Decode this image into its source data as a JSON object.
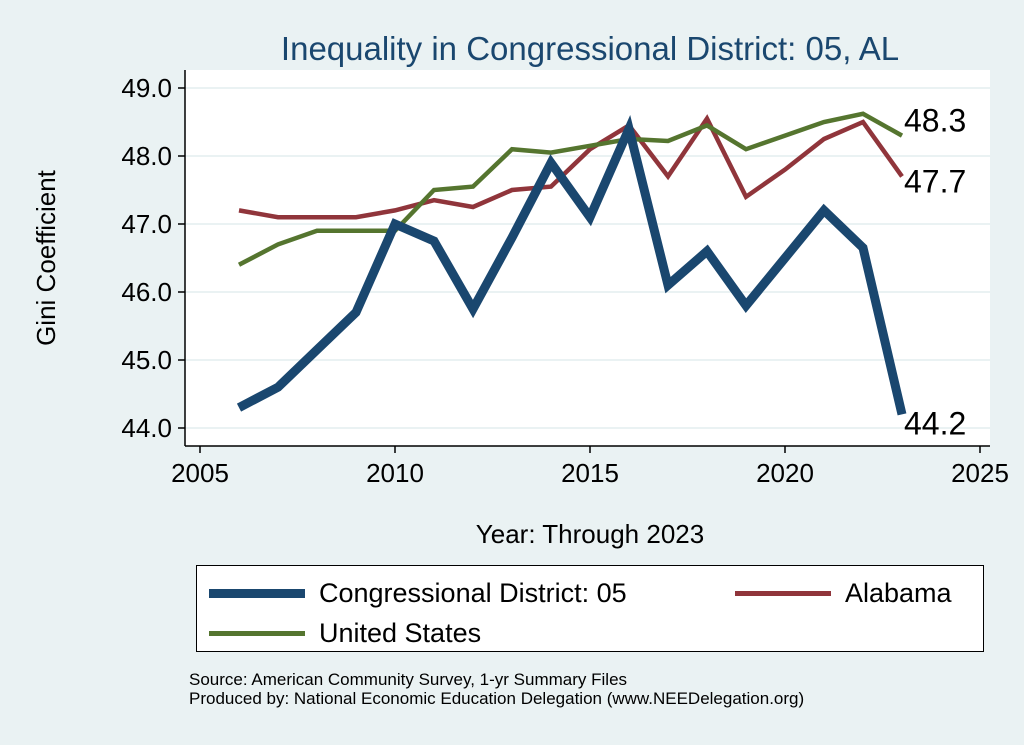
{
  "chart_data": {
    "type": "line",
    "title": "Inequality in Congressional District:  05, AL",
    "xlabel": "Year: Through 2023",
    "ylabel": "Gini Coefficient",
    "xlim": [
      2005,
      2025
    ],
    "ylim": [
      44.0,
      49.0
    ],
    "xticks": [
      2005,
      2010,
      2015,
      2020,
      2025
    ],
    "yticks": [
      44.0,
      45.0,
      46.0,
      47.0,
      48.0,
      49.0
    ],
    "x": [
      2006,
      2007,
      2008,
      2009,
      2010,
      2011,
      2012,
      2013,
      2014,
      2015,
      2016,
      2017,
      2018,
      2019,
      2020,
      2021,
      2022,
      2023
    ],
    "grid": true,
    "series": [
      {
        "name": "Congressional District:  05",
        "color": "#1a476f",
        "values": [
          44.3,
          44.6,
          45.15,
          45.7,
          47.0,
          46.75,
          45.75,
          46.8,
          47.9,
          47.1,
          48.4,
          46.1,
          46.6,
          45.8,
          46.5,
          47.2,
          46.65,
          44.2
        ],
        "end_label": "44.2"
      },
      {
        "name": "Alabama",
        "color": "#90353b",
        "values": [
          47.2,
          47.1,
          47.1,
          47.1,
          47.2,
          47.35,
          47.25,
          47.5,
          47.55,
          48.1,
          48.45,
          47.7,
          48.55,
          47.4,
          47.8,
          48.25,
          48.5,
          47.7
        ],
        "end_label": "47.7"
      },
      {
        "name": "United States",
        "color": "#55752f",
        "values": [
          46.4,
          46.7,
          46.9,
          46.9,
          46.9,
          47.5,
          47.55,
          48.1,
          48.05,
          48.15,
          48.25,
          48.22,
          48.45,
          48.1,
          48.3,
          48.5,
          48.62,
          48.3
        ],
        "end_label": "48.3"
      }
    ],
    "legend_position": "bottom"
  },
  "source_line_1": "Source: American Community Survey, 1-yr Summary Files",
  "source_line_2": "Produced by: National Economic Education Delegation (www.NEEDelegation.org)"
}
